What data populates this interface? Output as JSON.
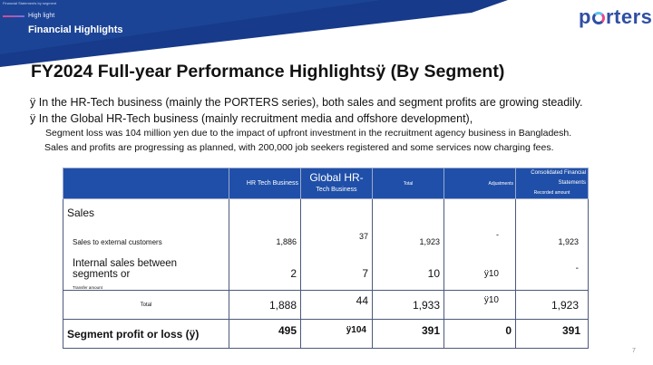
{
  "header": {
    "tiny_text": "Financial Statements by segment",
    "kicker": "High light",
    "section_title": "Financial Highlights",
    "logo": {
      "pre": "p",
      "post": "rters"
    }
  },
  "title": "FY2024 Full-year Performance Highlightsÿ (By Segment)",
  "bullets": [
    "ÿ In the HR-Tech business (mainly the PORTERS series), both sales and segment profits are growing steadily.",
    "ÿ In the Global HR-Tech business (mainly recruitment media and offshore development),"
  ],
  "sub_lines": [
    "Segment loss was 104 million yen due to the impact of upfront investment in the recruitment agency business in Bangladesh.",
    "Sales and profits are progressing as planned, with 200,000 job seekers registered and some services now charging fees."
  ],
  "table": {
    "headers": {
      "c1": "HR Tech Business",
      "c2_main": "Global HR-",
      "c2_sub": "Tech Business",
      "c3": "Total",
      "c4": "Adjustments",
      "c5_main": "Consolidated Financial Statements",
      "c5_sub": "Recorded amount"
    },
    "sales_label": "Sales",
    "external": {
      "label": "Sales to external customers",
      "values": [
        "1,886",
        "37",
        "1,923",
        "-",
        "1,923"
      ]
    },
    "internal": {
      "label": "Internal sales between segments or",
      "note": "Transfer amount",
      "values": [
        "2",
        "7",
        "10",
        "ÿ10",
        "-"
      ]
    },
    "total": {
      "label": "Total",
      "values": [
        "1,888",
        "44",
        "1,933",
        "ÿ10",
        "1,923"
      ]
    },
    "profit": {
      "label": "Segment profit or loss (ÿ)",
      "values": [
        "495",
        "ÿ104",
        "391",
        "0",
        "391"
      ]
    }
  },
  "page_number": "7",
  "colors": {
    "banner": "#173a8a",
    "header_fill": "#1f4fa8",
    "logo": "#2f4fa3"
  }
}
